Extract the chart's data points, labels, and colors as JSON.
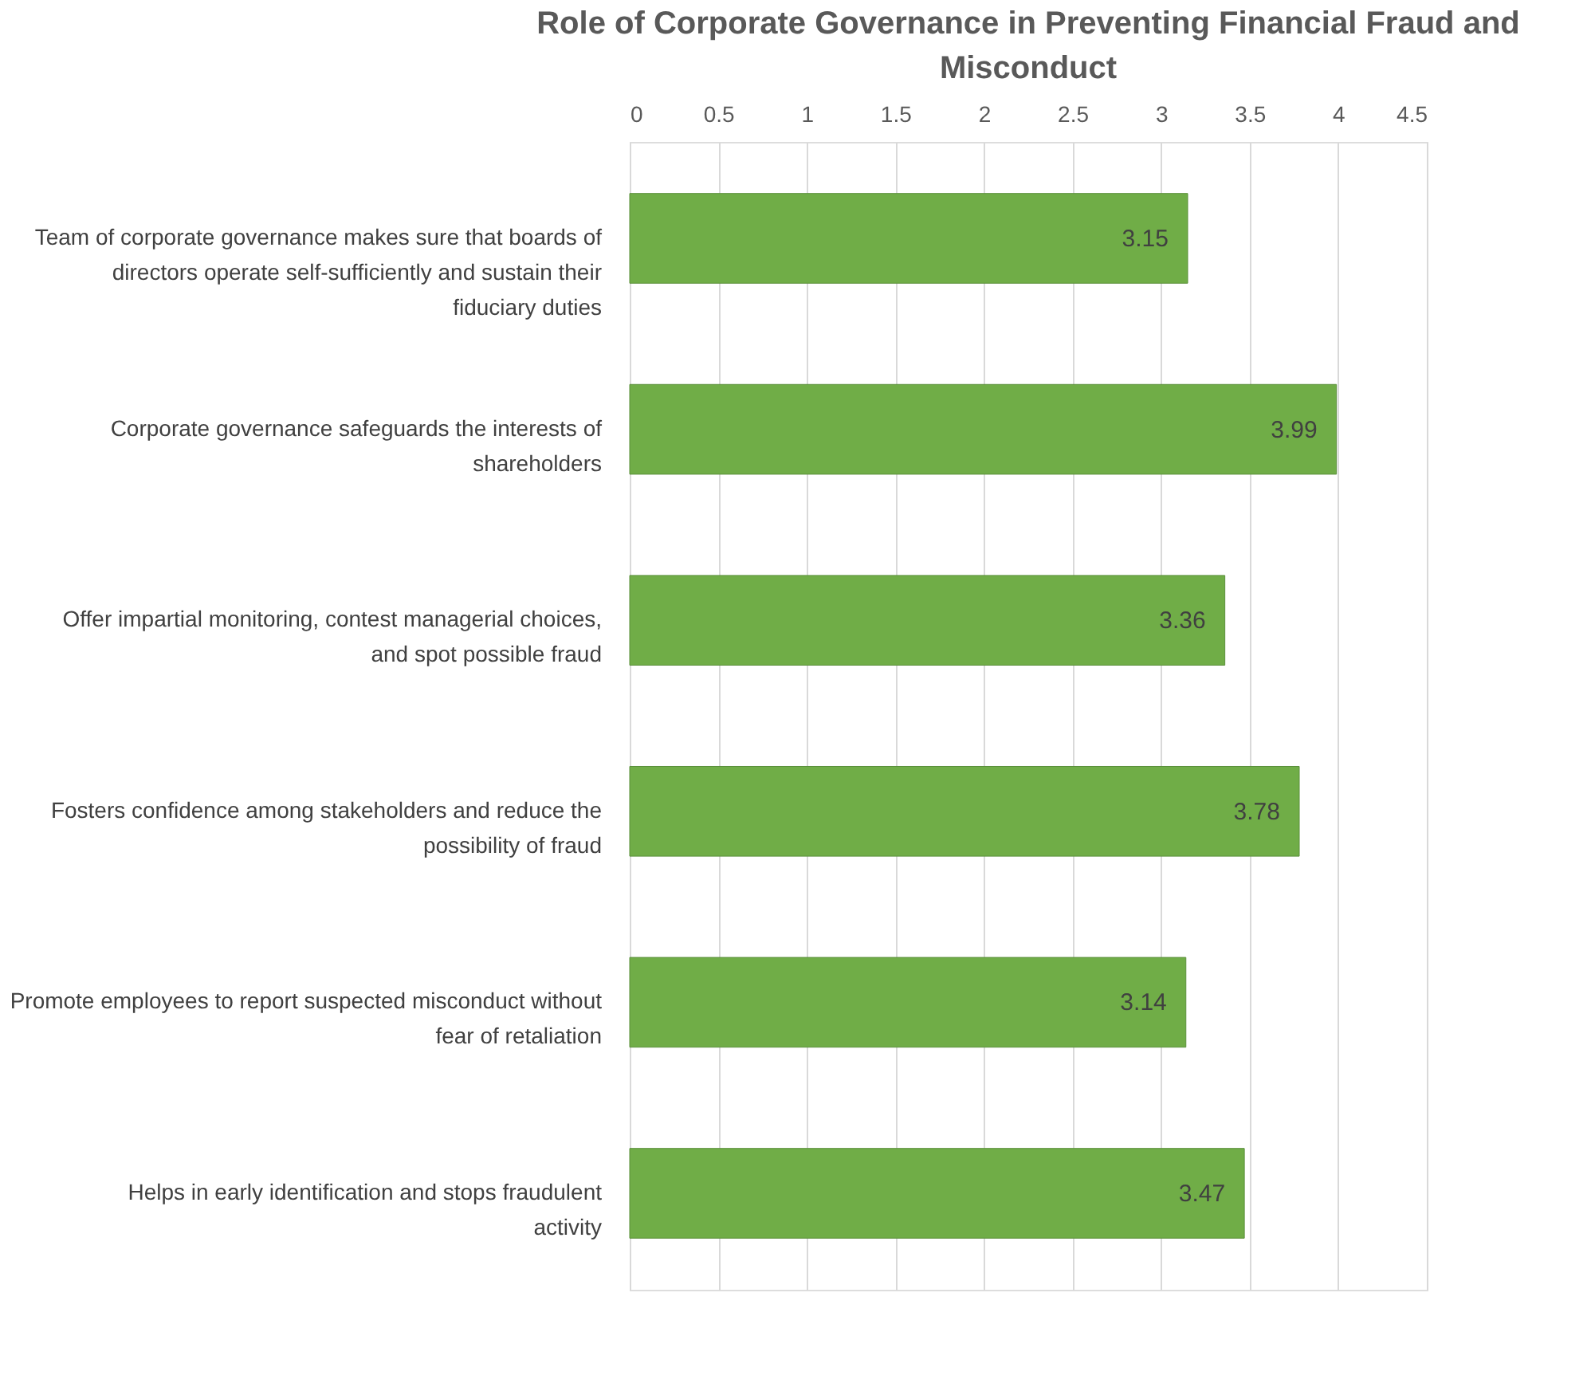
{
  "chart_data": {
    "type": "bar",
    "orientation": "horizontal",
    "title": "Role of Corporate Governance in Preventing Financial Fraud and Misconduct",
    "categories": [
      "Team of corporate governance makes sure that boards of directors operate self-sufficiently and sustain their fiduciary duties",
      "Corporate governance safeguards the interests of shareholders",
      "Offer impartial monitoring, contest managerial choices, and spot possible fraud",
      "Fosters confidence among stakeholders and reduce the possibility of fraud",
      "Promote employees to report suspected misconduct without fear of retaliation",
      "Helps in early identification and stops fraudulent activity"
    ],
    "values": [
      3.15,
      3.99,
      3.36,
      3.78,
      3.14,
      3.47
    ],
    "color": "#70ad47",
    "xlim": [
      0,
      4.5
    ],
    "xticks": [
      0,
      0.5,
      1,
      1.5,
      2,
      2.5,
      3,
      3.5,
      4,
      4.5
    ],
    "grid": "x",
    "data_labels": true
  }
}
